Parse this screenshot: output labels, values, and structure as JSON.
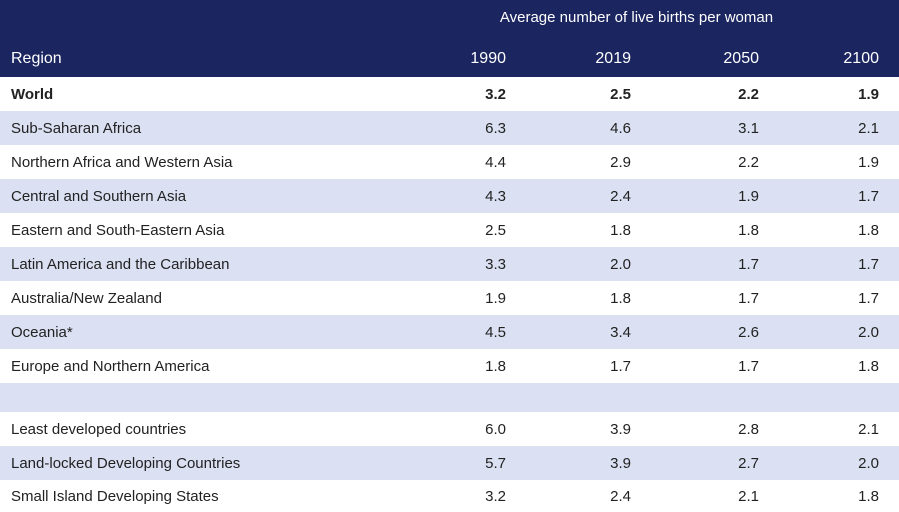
{
  "header": {
    "super_label": "Average number of live births per woman",
    "region_label": "Region",
    "years": [
      "1990",
      "2019",
      "2050",
      "2100"
    ]
  },
  "rows": [
    {
      "region": "World",
      "v1990": "3.2",
      "v2019": "2.5",
      "v2050": "2.2",
      "v2100": "1.9"
    },
    {
      "region": "Sub-Saharan Africa",
      "v1990": "6.3",
      "v2019": "4.6",
      "v2050": "3.1",
      "v2100": "2.1"
    },
    {
      "region": "Northern Africa and Western Asia",
      "v1990": "4.4",
      "v2019": "2.9",
      "v2050": "2.2",
      "v2100": "1.9"
    },
    {
      "region": "Central and Southern Asia",
      "v1990": "4.3",
      "v2019": "2.4",
      "v2050": "1.9",
      "v2100": "1.7"
    },
    {
      "region": "Eastern and South-Eastern Asia",
      "v1990": "2.5",
      "v2019": "1.8",
      "v2050": "1.8",
      "v2100": "1.8"
    },
    {
      "region": "Latin America and the Caribbean",
      "v1990": "3.3",
      "v2019": "2.0",
      "v2050": "1.7",
      "v2100": "1.7"
    },
    {
      "region": "Australia/New Zealand",
      "v1990": "1.9",
      "v2019": "1.8",
      "v2050": "1.7",
      "v2100": "1.7"
    },
    {
      "region": "Oceania*",
      "v1990": "4.5",
      "v2019": "3.4",
      "v2050": "2.6",
      "v2100": "2.0"
    },
    {
      "region": "Europe and Northern America",
      "v1990": "1.8",
      "v2019": "1.7",
      "v2050": "1.7",
      "v2100": "1.8"
    },
    {
      "region": "Least developed countries",
      "v1990": "6.0",
      "v2019": "3.9",
      "v2050": "2.8",
      "v2100": "2.1"
    },
    {
      "region": "Land-locked Developing Countries",
      "v1990": "5.7",
      "v2019": "3.9",
      "v2050": "2.7",
      "v2100": "2.0"
    },
    {
      "region": "Small Island Developing States",
      "v1990": "3.2",
      "v2019": "2.4",
      "v2050": "2.1",
      "v2100": "1.8"
    }
  ],
  "colors": {
    "header_bg": "#1b2560",
    "alt_row_bg": "#dbe1f3"
  }
}
